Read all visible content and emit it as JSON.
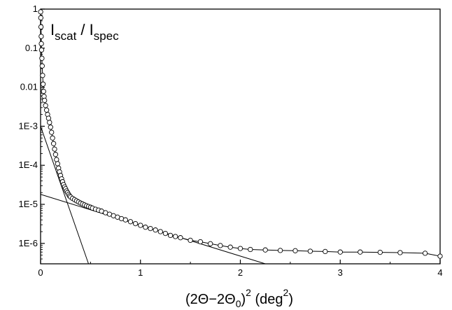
{
  "chart_data": {
    "type": "scatter",
    "title": "",
    "annotation": {
      "main1": "I",
      "sub1": "scat",
      "sep": " / ",
      "main2": "I",
      "sub2": "spec"
    },
    "xlabel": {
      "pre": "(2Θ−2Θ",
      "sub": "0",
      "post": ")",
      "exp": "2",
      "unit_pre": " (deg",
      "unit_exp": "2",
      "unit_post": ")"
    },
    "ylabel": "",
    "xlim": [
      0,
      4
    ],
    "ylim": [
      3e-07,
      1
    ],
    "yscale": "log",
    "x_ticks": [
      {
        "value": 0,
        "label": "0"
      },
      {
        "value": 1,
        "label": "1"
      },
      {
        "value": 2,
        "label": "2"
      },
      {
        "value": 3,
        "label": "3"
      },
      {
        "value": 4,
        "label": "4"
      }
    ],
    "y_ticks": [
      {
        "value": 1,
        "label": "1"
      },
      {
        "value": 0.1,
        "label": "0.1"
      },
      {
        "value": 0.01,
        "label": "0.01"
      },
      {
        "value": 0.001,
        "label": "1E-3"
      },
      {
        "value": 0.0001,
        "label": "1E-4"
      },
      {
        "value": 1e-05,
        "label": "1E-5"
      },
      {
        "value": 1e-06,
        "label": "1E-6"
      }
    ],
    "grid": false,
    "legend": "none",
    "series": [
      {
        "marker": "open-circle",
        "connected": true,
        "x": [
          0.001,
          0.002,
          0.004,
          0.006,
          0.008,
          0.01,
          0.013,
          0.016,
          0.02,
          0.025,
          0.03,
          0.035,
          0.04,
          0.05,
          0.06,
          0.07,
          0.08,
          0.09,
          0.1,
          0.11,
          0.12,
          0.13,
          0.14,
          0.15,
          0.16,
          0.17,
          0.18,
          0.19,
          0.2,
          0.21,
          0.22,
          0.23,
          0.24,
          0.25,
          0.26,
          0.27,
          0.28,
          0.29,
          0.3,
          0.32,
          0.34,
          0.36,
          0.38,
          0.4,
          0.42,
          0.44,
          0.46,
          0.48,
          0.5,
          0.52,
          0.55,
          0.58,
          0.61,
          0.65,
          0.69,
          0.73,
          0.77,
          0.81,
          0.85,
          0.9,
          0.95,
          1.0,
          1.05,
          1.1,
          1.15,
          1.2,
          1.25,
          1.3,
          1.35,
          1.4,
          1.5,
          1.6,
          1.7,
          1.8,
          1.9,
          2.0,
          2.1,
          2.25,
          2.4,
          2.55,
          2.7,
          2.85,
          3.0,
          3.2,
          3.4,
          3.6,
          3.85,
          4.0
        ],
        "y": [
          0.85,
          0.6,
          0.35,
          0.2,
          0.13,
          0.09,
          0.055,
          0.035,
          0.02,
          0.012,
          0.0078,
          0.0058,
          0.0046,
          0.0034,
          0.0026,
          0.002,
          0.0016,
          0.00125,
          0.00095,
          0.0007,
          0.0005,
          0.00036,
          0.00026,
          0.00019,
          0.00014,
          0.00011,
          8.5e-05,
          6.8e-05,
          5.5e-05,
          4.5e-05,
          3.8e-05,
          3.2e-05,
          2.8e-05,
          2.5e-05,
          2.2e-05,
          2e-05,
          1.8e-05,
          1.65e-05,
          1.55e-05,
          1.42e-05,
          1.32e-05,
          1.23e-05,
          1.15e-05,
          1.08e-05,
          1.02e-05,
          9.7e-06,
          9.2e-06,
          8.8e-06,
          8.4e-06,
          8e-06,
          7.5e-06,
          7.1e-06,
          6.7e-06,
          6.1e-06,
          5.6e-06,
          5.1e-06,
          4.7e-06,
          4.3e-06,
          4e-06,
          3.6e-06,
          3.2e-06,
          2.9e-06,
          2.6e-06,
          2.4e-06,
          2.2e-06,
          2e-06,
          1.8e-06,
          1.6e-06,
          1.5e-06,
          1.4e-06,
          1.2e-06,
          1.1e-06,
          9.8e-07,
          8.8e-07,
          8e-07,
          7.4e-07,
          7e-07,
          6.8e-07,
          6.6e-07,
          6.5e-07,
          6.3e-07,
          6.2e-07,
          6e-07,
          6e-07,
          5.9e-07,
          5.8e-07,
          5.6e-07,
          4.7e-07
        ]
      }
    ],
    "fit_lines": [
      {
        "x": [
          0.0,
          0.48
        ],
        "y": [
          0.001,
          3e-07
        ]
      },
      {
        "x": [
          0.0,
          2.25
        ],
        "y": [
          1.8e-05,
          3e-07
        ]
      }
    ]
  }
}
